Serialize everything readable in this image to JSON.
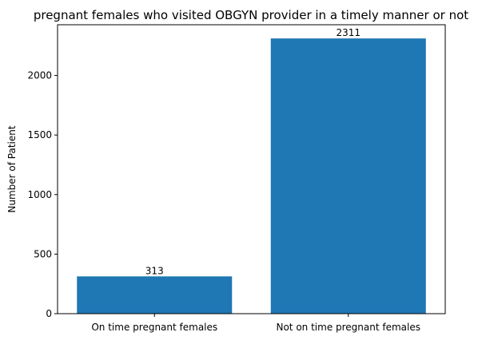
{
  "chart_data": {
    "type": "bar",
    "title": "pregnant females who visited OBGYN provider in a timely manner or not",
    "xlabel": "",
    "ylabel": "Number of Patient",
    "categories": [
      "On time pregnant females",
      "Not on time pregnant females"
    ],
    "values": [
      313,
      2311
    ],
    "data_labels": [
      "313",
      "2311"
    ],
    "ylim": [
      0,
      2426
    ],
    "yticks": [
      0,
      500,
      1000,
      1500,
      2000
    ],
    "ytick_labels": [
      "0",
      "500",
      "1000",
      "1500",
      "2000"
    ],
    "grid": false,
    "legend": "none",
    "bar_color": "#1f77b4"
  }
}
